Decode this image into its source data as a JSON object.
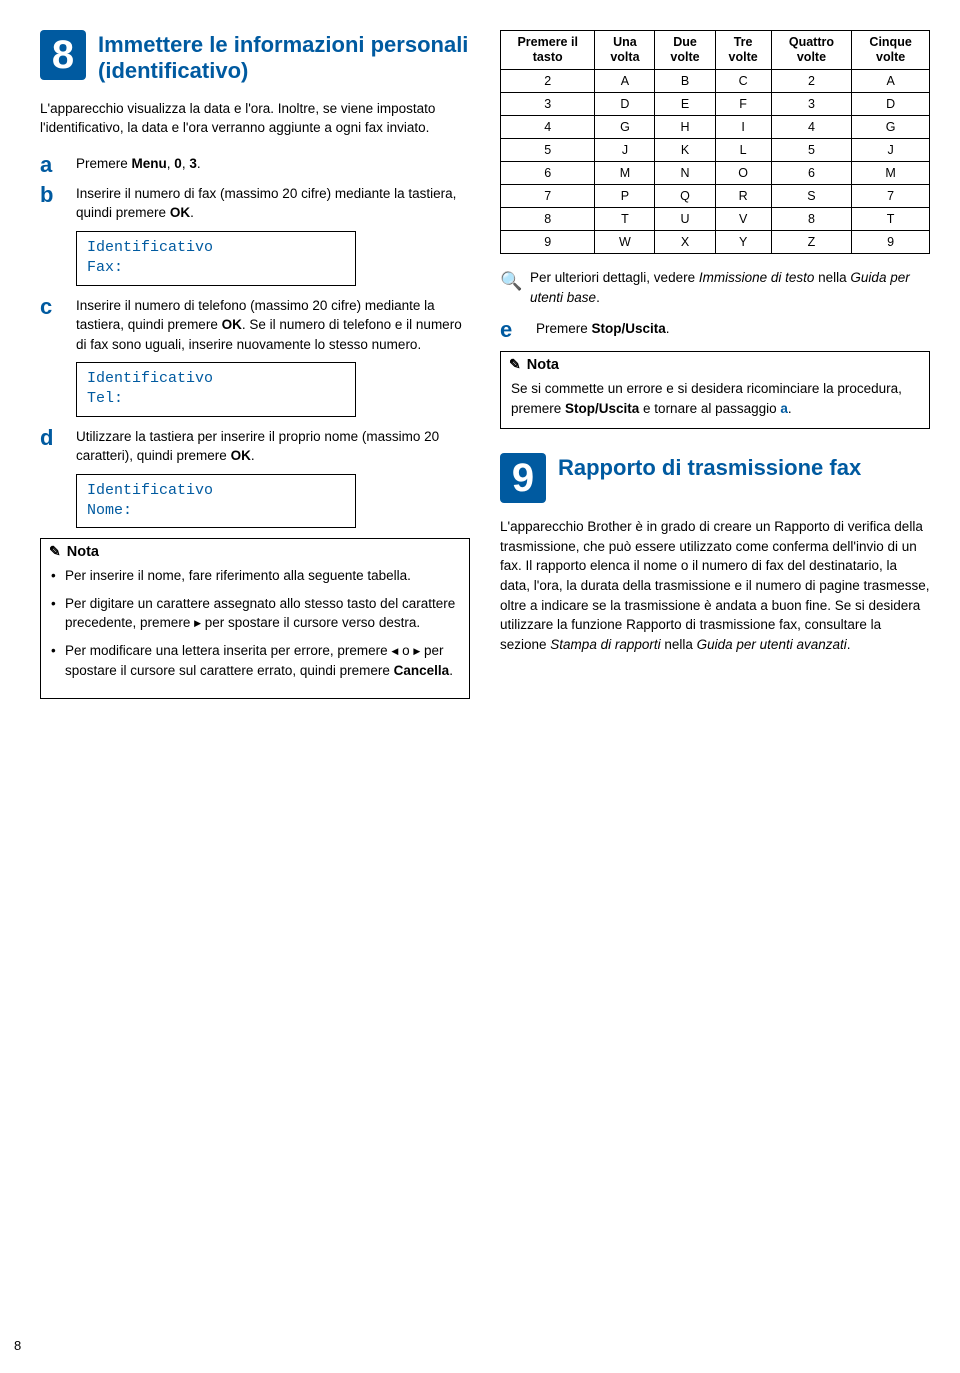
{
  "pageNumber": "8",
  "step8": {
    "number": "8",
    "title": "Immettere le informazioni personali (identificativo)",
    "intro": "L'apparecchio visualizza la data e l'ora. Inoltre, se viene impostato l'identificativo, la data e l'ora verranno aggiunte a ogni fax inviato.",
    "a": {
      "letter": "a",
      "text_pre": "Premere ",
      "bold1": "Menu",
      "sep1": ", ",
      "bold2": "0",
      "sep2": ", ",
      "bold3": "3",
      "text_post": "."
    },
    "b": {
      "letter": "b",
      "text1": "Inserire il numero di fax (massimo 20 cifre) mediante la tastiera, quindi premere ",
      "ok": "OK",
      "text2": ".",
      "lcd_line1": "Identificativo",
      "lcd_line2": "Fax:"
    },
    "c": {
      "letter": "c",
      "text1": "Inserire il numero di telefono (massimo 20 cifre) mediante la tastiera, quindi premere ",
      "ok": "OK",
      "text2": ". Se il numero di telefono e il numero di fax sono uguali, inserire nuovamente lo stesso numero.",
      "lcd_line1": "Identificativo",
      "lcd_line2": "Tel:"
    },
    "d": {
      "letter": "d",
      "text1": "Utilizzare la tastiera per inserire il proprio nome (massimo 20 caratteri), quindi premere ",
      "ok": "OK",
      "text2": ".",
      "lcd_line1": "Identificativo",
      "lcd_line2": "Nome:"
    },
    "note": {
      "label": "Nota",
      "li1": "Per inserire il nome, fare riferimento alla seguente tabella.",
      "li2_a": "Per digitare un carattere assegnato allo stesso tasto del carattere precedente, premere ",
      "li2_b": " per spostare il cursore verso destra.",
      "li3_a": "Per modificare una lettera inserita per errore, premere ",
      "li3_mid": " o ",
      "li3_b": " per spostare il cursore sul carattere errato, quindi premere ",
      "li3_cancel": "Cancella",
      "li3_c": "."
    }
  },
  "table": {
    "headers": [
      "Premere il tasto",
      "Una volta",
      "Due volte",
      "Tre volte",
      "Quattro volte",
      "Cinque volte"
    ],
    "rows": [
      [
        "2",
        "A",
        "B",
        "C",
        "2",
        "A"
      ],
      [
        "3",
        "D",
        "E",
        "F",
        "3",
        "D"
      ],
      [
        "4",
        "G",
        "H",
        "I",
        "4",
        "G"
      ],
      [
        "5",
        "J",
        "K",
        "L",
        "5",
        "J"
      ],
      [
        "6",
        "M",
        "N",
        "O",
        "6",
        "M"
      ],
      [
        "7",
        "P",
        "Q",
        "R",
        "S",
        "7"
      ],
      [
        "8",
        "T",
        "U",
        "V",
        "8",
        "T"
      ],
      [
        "9",
        "W",
        "X",
        "Y",
        "Z",
        "9"
      ]
    ]
  },
  "tip": {
    "text1": "Per ulteriori dettagli, vedere ",
    "italic1": "Immissione di testo",
    "text2": " nella ",
    "italic2": "Guida per utenti base",
    "text3": "."
  },
  "e": {
    "letter": "e",
    "text_pre": "Premere ",
    "bold": "Stop/Uscita",
    "text_post": "."
  },
  "note2": {
    "label": "Nota",
    "text1": "Se si commette un errore e si desidera ricominciare la procedura, premere ",
    "bold": "Stop/Uscita",
    "text2": " e tornare al passaggio ",
    "ref": "a",
    "text3": "."
  },
  "step9": {
    "number": "9",
    "title": "Rapporto di trasmissione fax",
    "body1": "L'apparecchio Brother è in grado di creare un Rapporto di verifica della trasmissione, che può essere utilizzato come conferma dell'invio di un fax. Il rapporto elenca il nome o il numero di fax del destinatario, la data, l'ora, la durata della trasmissione e il numero di pagine trasmesse, oltre a indicare se la trasmissione è andata a buon fine. Se si desidera utilizzare la funzione Rapporto di trasmissione fax, consultare la sezione ",
    "italic1": "Stampa di rapporti",
    "body2": " nella ",
    "italic2": "Guida per utenti avanzati",
    "body3": "."
  }
}
